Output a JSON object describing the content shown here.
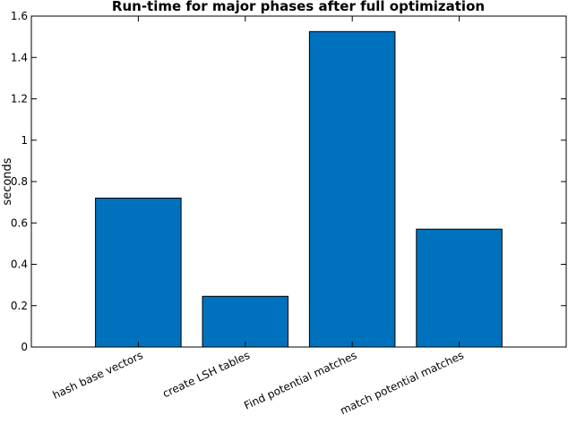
{
  "chart_data": {
    "type": "bar",
    "title": "Run-time for major phases after full optimization",
    "xlabel": "",
    "ylabel": "seconds",
    "categories": [
      "hash base vectors",
      "create LSH tables",
      "Find potential matches",
      "match potential matches"
    ],
    "values": [
      0.72,
      0.245,
      1.525,
      0.57
    ],
    "ylim": [
      0,
      1.6
    ],
    "yticks": [
      0,
      0.2,
      0.4,
      0.6,
      0.8,
      1,
      1.2,
      1.4,
      1.6
    ],
    "ytick_labels": [
      "0",
      "0.2",
      "0.4",
      "0.6",
      "0.8",
      "1",
      "1.2",
      "1.4",
      "1.6"
    ],
    "grid": false,
    "bar_color": "#0072bd",
    "bar_edge_color": "#000000"
  }
}
